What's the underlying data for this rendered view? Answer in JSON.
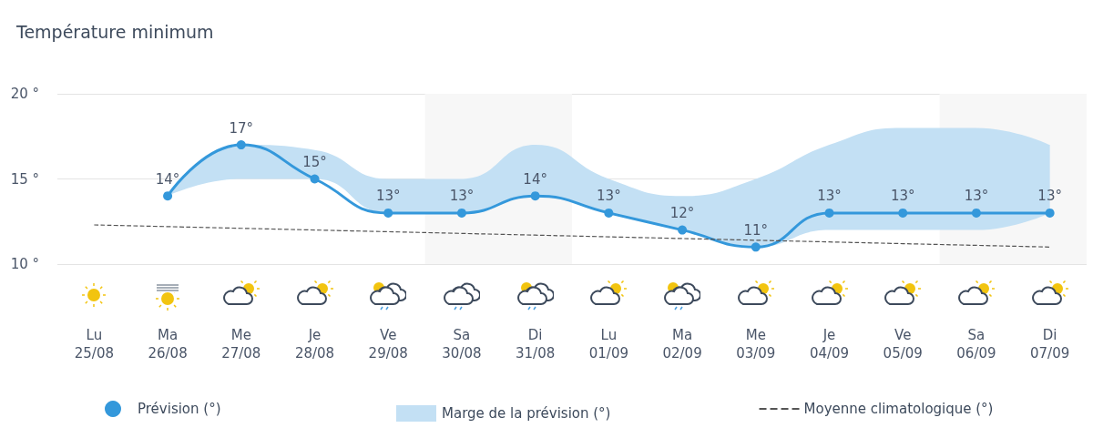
{
  "chart_data": {
    "type": "line",
    "title": "Température minimum",
    "categories": [
      "Lu\n25/08",
      "Ma\n26/08",
      "Me\n27/08",
      "Je\n28/08",
      "Ve\n29/08",
      "Sa\n30/08",
      "Di\n31/08",
      "Lu\n01/09",
      "Ma\n02/09",
      "Me\n03/09",
      "Je\n04/09",
      "Ve\n05/09",
      "Sa\n06/09",
      "Di\n07/09"
    ],
    "series": [
      {
        "name": "Prévision (°)",
        "color": "#3498db",
        "marker": "circle",
        "values": [
          null,
          14,
          17,
          15,
          13,
          13,
          14,
          13,
          12,
          11,
          13,
          13,
          13,
          13
        ],
        "value_labels": [
          null,
          "14°",
          "17°",
          "15°",
          "13°",
          "13°",
          "14°",
          "13°",
          "12°",
          "11°",
          "13°",
          "13°",
          "13°",
          "13°"
        ],
        "lower": [
          null,
          14,
          15,
          15,
          13,
          13,
          14,
          13,
          12,
          11,
          12,
          12,
          12,
          13
        ],
        "upper": [
          null,
          14,
          17,
          16.7,
          15,
          15,
          17,
          15,
          14,
          15,
          17,
          18,
          18,
          17
        ]
      },
      {
        "name": "Moyenne climatologique (°)",
        "type": "line",
        "color": "#555555",
        "marker": "none",
        "line_style": "dashed",
        "values": [
          12.3,
          12.2,
          12.1,
          12.0,
          11.9,
          11.8,
          11.7,
          11.6,
          11.5,
          11.4,
          11.3,
          11.2,
          11.1,
          11.0
        ]
      }
    ],
    "ylim": [
      10,
      20
    ],
    "yticks": [
      {
        "value": 10,
        "label": "10 °"
      },
      {
        "value": 15,
        "label": "15 °"
      },
      {
        "value": 20,
        "label": "20 °"
      }
    ],
    "grid": "y",
    "legend": "bottom",
    "annotations": [
      "Marge de la prévision (°)"
    ],
    "bands": [
      {
        "axis": "x",
        "from": "Sa\n30/08",
        "to": "Di\n31/08",
        "color": "#f7f7f7"
      },
      {
        "axis": "x",
        "from": "Sa\n06/09",
        "to": "Di\n07/09",
        "color": "#f7f7f7"
      }
    ]
  }
}
